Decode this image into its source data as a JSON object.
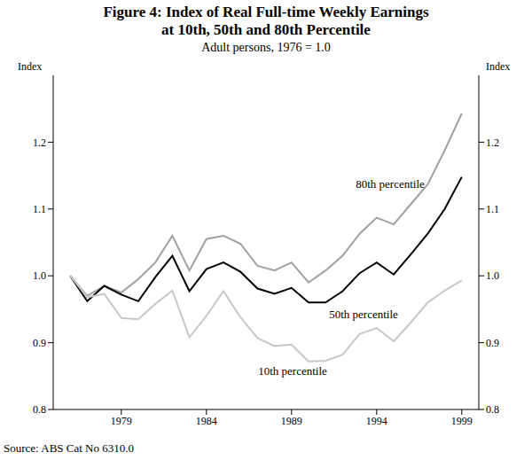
{
  "chart_data": {
    "type": "line",
    "title": [
      "Figure 4: Index of Real Full-time Weekly Earnings",
      "at 10th, 50th and 80th Percentile"
    ],
    "subtitle": "Adult persons, 1976 = 1.0",
    "y_label": "Index",
    "y2_label": "Index",
    "source": "Source: ABS Cat No 6310.0",
    "x": [
      1976,
      1977,
      1978,
      1979,
      1980,
      1981,
      1982,
      1983,
      1984,
      1985,
      1986,
      1987,
      1988,
      1989,
      1990,
      1991,
      1992,
      1993,
      1994,
      1995,
      1996,
      1997,
      1998,
      1999
    ],
    "xlim": [
      1975,
      2000
    ],
    "xticks": [
      1979,
      1984,
      1989,
      1994,
      1999
    ],
    "ylim": [
      0.8,
      1.3
    ],
    "yticks": [
      0.8,
      0.9,
      {
        "value": 1,
        "label": "1.0"
      },
      1.1,
      1.2
    ],
    "y2lim": [
      0.8,
      1.3
    ],
    "y2ticks": [
      0.8,
      0.9,
      {
        "value": 1,
        "label": "1.0"
      },
      1.1,
      1.2
    ],
    "grid": false,
    "series": [
      {
        "name": "80th percentile",
        "color": "#a0a0a0",
        "values": [
          1.0,
          0.97,
          0.985,
          0.975,
          0.995,
          1.02,
          1.06,
          1.008,
          1.055,
          1.06,
          1.048,
          1.015,
          1.008,
          1.02,
          0.99,
          1.008,
          1.03,
          1.063,
          1.087,
          1.077,
          1.107,
          1.137,
          1.188,
          1.243
        ]
      },
      {
        "name": "50th percentile",
        "color": "#000000",
        "values": [
          1.0,
          0.962,
          0.985,
          0.972,
          0.962,
          0.998,
          1.03,
          0.977,
          1.01,
          1.02,
          1.006,
          0.981,
          0.973,
          0.982,
          0.96,
          0.96,
          0.977,
          1.004,
          1.02,
          1.002,
          1.032,
          1.063,
          1.1,
          1.148
        ]
      },
      {
        "name": "10th percentile",
        "color": "#c8c8c8",
        "values": [
          1.0,
          0.968,
          0.973,
          0.937,
          0.935,
          0.958,
          0.978,
          0.908,
          0.94,
          0.977,
          0.938,
          0.907,
          0.895,
          0.897,
          0.872,
          0.873,
          0.882,
          0.913,
          0.922,
          0.902,
          0.93,
          0.96,
          0.978,
          0.993
        ]
      }
    ]
  }
}
